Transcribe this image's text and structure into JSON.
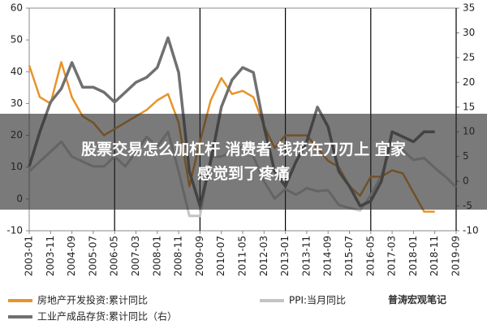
{
  "chart_data": {
    "type": "line",
    "categories": [
      "2003-01",
      null,
      "2003-11",
      null,
      "2004-09",
      null,
      "2005-07",
      null,
      "2006-05",
      null,
      "2007-03",
      null,
      "2008-01",
      null,
      "2008-11",
      null,
      "2009-09",
      null,
      "2010-07",
      null,
      "2011-05",
      null,
      "2012-03",
      null,
      "2013-01",
      null,
      "2013-11",
      null,
      "2014-09",
      null,
      "2015-07",
      null,
      "2016-05",
      null,
      "2017-03",
      null,
      "2018-01",
      null,
      "2018-11",
      null,
      "2019-09"
    ],
    "series": [
      {
        "name": "房地产开发投资:累计同比",
        "color": "#e8932a",
        "values": [
          42,
          32,
          30,
          43,
          32,
          26,
          24,
          20,
          22,
          24,
          26,
          28,
          31,
          33,
          24,
          4,
          18,
          31,
          38,
          33,
          34,
          32,
          23,
          16,
          20,
          20,
          20,
          16,
          12,
          10,
          4,
          1,
          7,
          7,
          9,
          8,
          2,
          -4,
          -4,
          null,
          null
        ]
      },
      {
        "name": "PPI:当月同比",
        "color": "#c4c4c4",
        "axis": "y2",
        "values": [
          2,
          4,
          6,
          8,
          5,
          4,
          3,
          3,
          5,
          3,
          6,
          9,
          7,
          10,
          2,
          -7,
          -7,
          5,
          5,
          6,
          7,
          5,
          0,
          -3.5,
          -1.6,
          -2.7,
          -1.4,
          -2,
          -1.8,
          -4.8,
          -5.4,
          -5.9,
          -2.8,
          1.2,
          7.6,
          6.3,
          4.3,
          4.7,
          2.7,
          0.9,
          -1.2
        ]
      },
      {
        "name": "工业产成品存货:累计同比（右）",
        "color": "#707070",
        "axis": "y2",
        "values": [
          3,
          10,
          16,
          18.7,
          24,
          19,
          19,
          18,
          16,
          18,
          20,
          21,
          23,
          29,
          22,
          2,
          -5,
          4,
          15,
          20.5,
          23,
          22,
          11,
          2,
          -1,
          4,
          8,
          15,
          11,
          2,
          -1,
          -5,
          -4,
          0,
          10,
          9,
          8,
          10,
          10,
          null,
          null
        ]
      }
    ],
    "ylim": [
      -10,
      60
    ],
    "yticks": [
      -10,
      0,
      10,
      20,
      30,
      40,
      50,
      60
    ],
    "y2lim": [
      -10,
      35
    ],
    "y2ticks": [
      -10,
      -5,
      0,
      5,
      10,
      15,
      20,
      25,
      30,
      35
    ]
  },
  "banner": {
    "lines": [
      "股票交易怎么加杠杆 消费者 钱花在刀刃上 宜家",
      "感觉到了疼痛"
    ]
  },
  "watermark": "普涛宏观笔记"
}
